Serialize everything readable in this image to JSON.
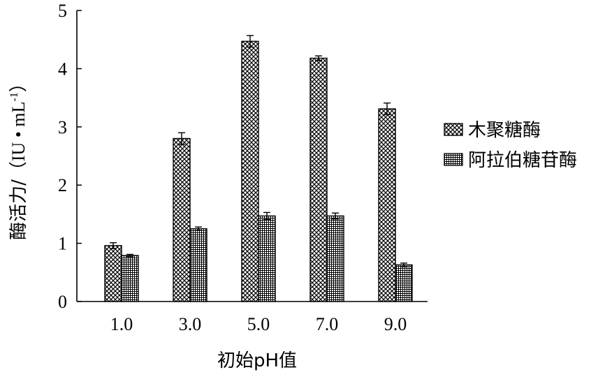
{
  "chart_data": {
    "type": "bar",
    "title": "",
    "xlabel": "初始pH值",
    "ylabel": {
      "main": "酶活力/",
      "unit_open": "（",
      "unit_text": "IU • mL",
      "unit_sup": "-1",
      "unit_close": "）"
    },
    "categories": [
      "1.0",
      "3.0",
      "5.0",
      "7.0",
      "9.0"
    ],
    "ylim": [
      0,
      5
    ],
    "yticks": [
      "0",
      "1",
      "2",
      "3",
      "4",
      "5"
    ],
    "series": [
      {
        "name": "木聚糖酶",
        "values": [
          0.96,
          2.8,
          4.47,
          4.18,
          3.31
        ],
        "errors": [
          0.05,
          0.1,
          0.1,
          0.04,
          0.1
        ],
        "pattern": "crosshatch"
      },
      {
        "name": "阿拉伯糖苷酶",
        "values": [
          0.79,
          1.25,
          1.47,
          1.47,
          0.63
        ],
        "errors": [
          0.02,
          0.03,
          0.06,
          0.05,
          0.03
        ],
        "pattern": "grid"
      }
    ],
    "legend_position": "right",
    "grid": false
  }
}
